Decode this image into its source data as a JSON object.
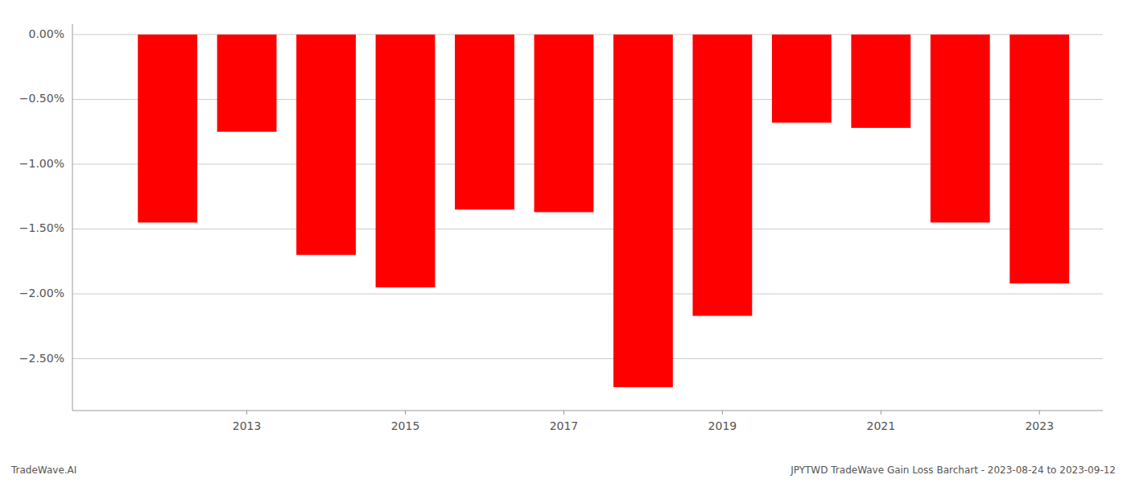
{
  "chart_data": {
    "type": "bar",
    "x": [
      2012,
      2013,
      2014,
      2015,
      2016,
      2017,
      2018,
      2019,
      2020,
      2021,
      2022,
      2023
    ],
    "values": [
      -1.45,
      -0.75,
      -1.7,
      -1.95,
      -1.35,
      -1.37,
      -2.72,
      -2.17,
      -0.68,
      -0.72,
      -1.45,
      -1.92
    ],
    "color": "#ff0000",
    "xlim": [
      2010.8,
      2023.8
    ],
    "xticks": [
      2013,
      2015,
      2017,
      2019,
      2021,
      2023
    ],
    "ylim": [
      -2.9,
      0.08
    ],
    "yticks": [
      {
        "value": 0.0,
        "label": "0.00%"
      },
      {
        "value": -0.5,
        "label": "−0.50%"
      },
      {
        "value": -1.0,
        "label": "−1.00%"
      },
      {
        "value": -1.5,
        "label": "−1.50%"
      },
      {
        "value": -2.0,
        "label": "−2.00%"
      },
      {
        "value": -2.5,
        "label": "−2.50%"
      }
    ],
    "grid": true,
    "annotations": [
      "TradeWave.AI",
      "JPYTWD TradeWave Gain Loss Barchart - 2023-08-24 to 2023-09-12"
    ]
  }
}
